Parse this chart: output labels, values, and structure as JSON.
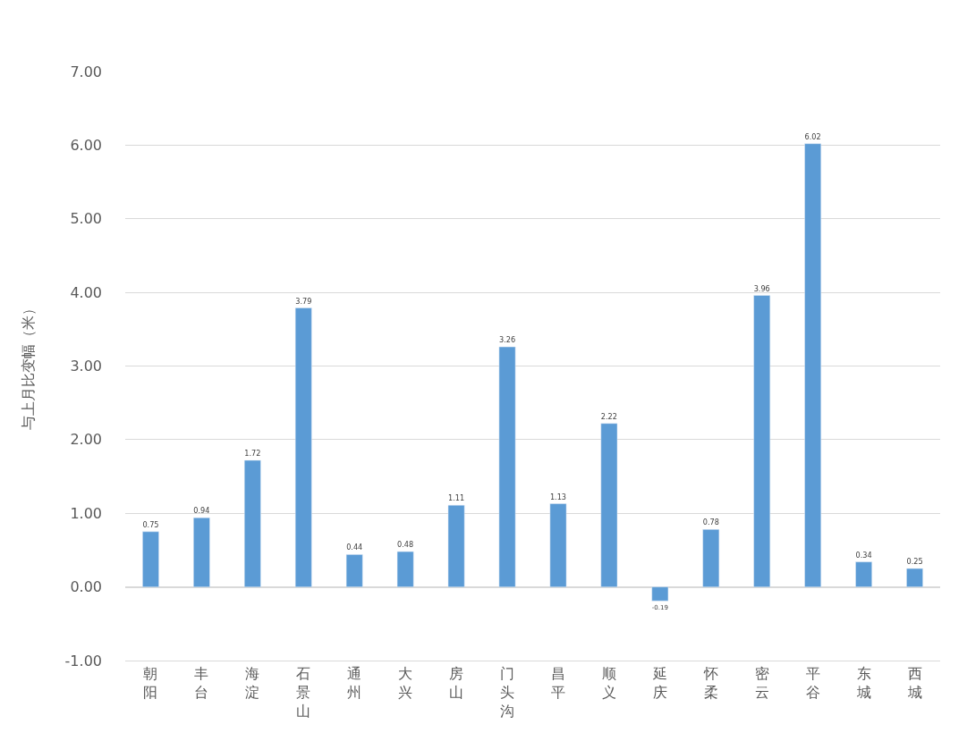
{
  "chart_data": {
    "type": "bar",
    "ylabel": "与上月比变幅（米）",
    "categories": [
      "朝阳",
      "丰台",
      "海淀",
      "石景山",
      "通州",
      "大兴",
      "房山",
      "门头沟",
      "昌平",
      "顺义",
      "延庆",
      "怀柔",
      "密云",
      "平谷",
      "东城",
      "西城"
    ],
    "values": [
      0.75,
      0.94,
      1.72,
      3.79,
      0.44,
      0.48,
      1.11,
      3.26,
      1.13,
      2.22,
      -0.19,
      0.78,
      3.96,
      6.02,
      0.34,
      0.25
    ],
    "color": "#5b9bd5",
    "ylim": [
      -1,
      7
    ],
    "yticks": [
      {
        "value": -1,
        "label": "-1.00"
      },
      {
        "value": 0,
        "label": "0.00"
      },
      {
        "value": 1,
        "label": "1.00"
      },
      {
        "value": 2,
        "label": "2.00"
      },
      {
        "value": 3,
        "label": "3.00"
      },
      {
        "value": 4,
        "label": "4.00"
      },
      {
        "value": 5,
        "label": "5.00"
      },
      {
        "value": 6,
        "label": "6.00"
      },
      {
        "value": 7,
        "label": "7.00"
      }
    ],
    "grid": "y",
    "data_labels": true
  }
}
